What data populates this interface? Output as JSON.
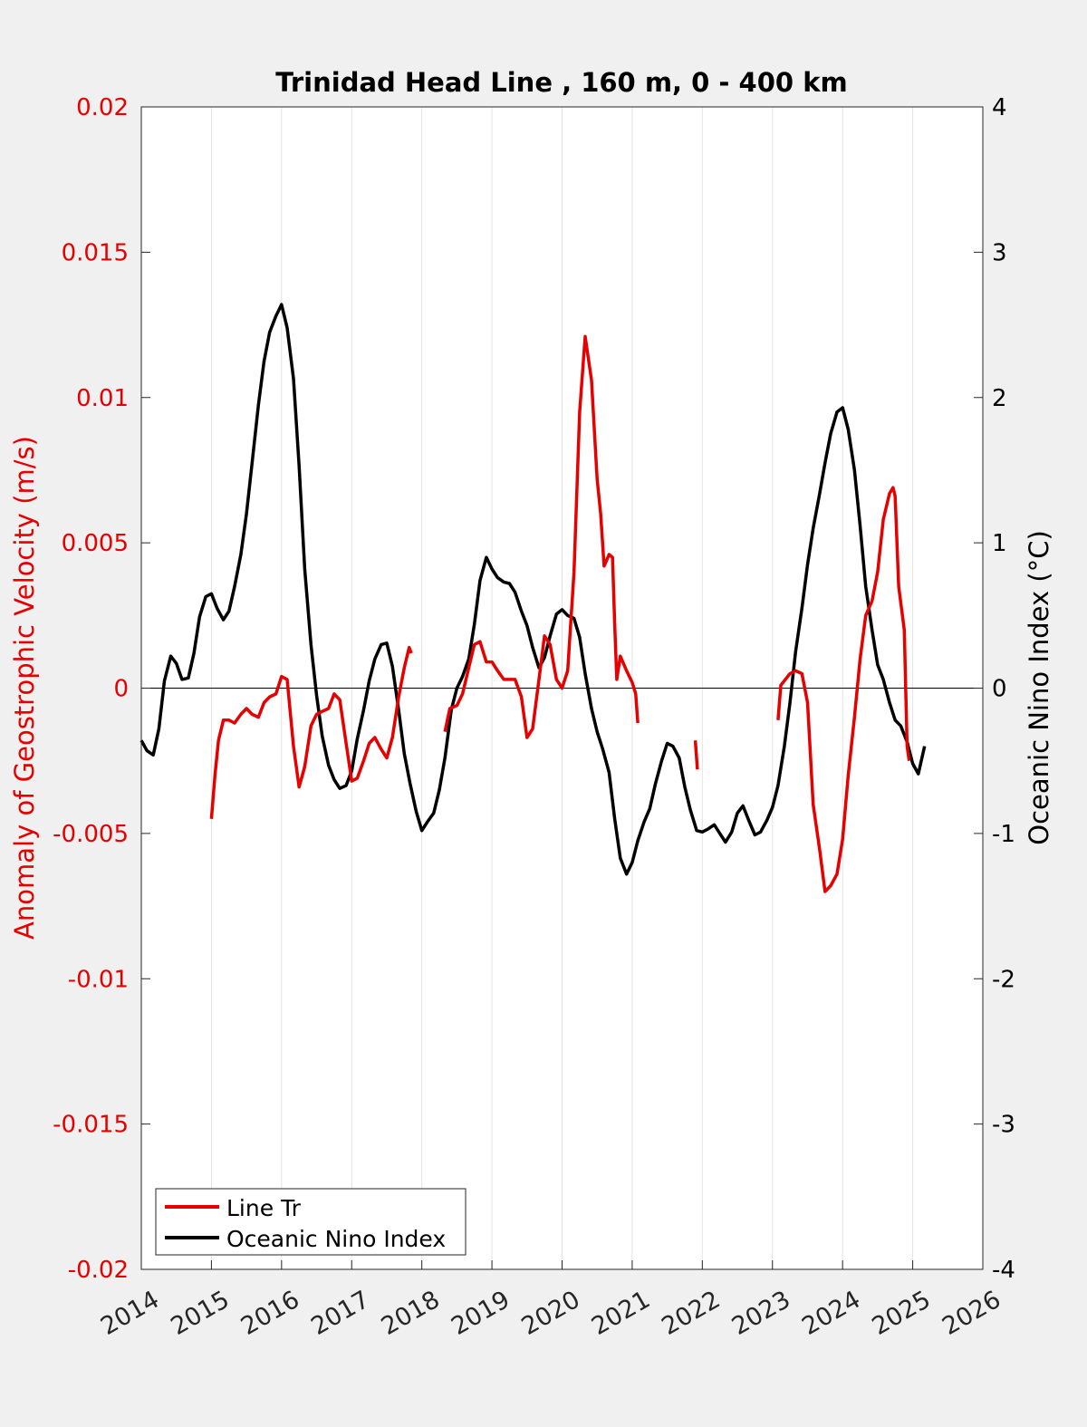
{
  "chart_data": {
    "type": "line",
    "title": "Trinidad Head Line , 160 m, 0 - 400 km",
    "xlabel": "",
    "ylabel_left": "Anomaly of Geostrophic Velocity (m/s)",
    "ylabel_right": "Oceanic Nino Index (°C)",
    "xlim": [
      2014,
      2026
    ],
    "ylim_left": [
      -0.02,
      0.02
    ],
    "ylim_right": [
      -4,
      4
    ],
    "x_ticks": [
      "2014",
      "2015",
      "2016",
      "2017",
      "2018",
      "2019",
      "2020",
      "2021",
      "2022",
      "2023",
      "2024",
      "2025",
      "2026"
    ],
    "y_left_ticks": [
      "0.02",
      "0.015",
      "0.01",
      "0.005",
      "0",
      "-0.005",
      "-0.01",
      "-0.015",
      "-0.02"
    ],
    "y_right_ticks": [
      "4",
      "3",
      "2",
      "1",
      "0",
      "-1",
      "-2",
      "-3",
      "-4"
    ],
    "vertical_grid": true,
    "zero_line": true,
    "legend_position": "bottom-left",
    "colors": {
      "line_tr": "#e60000",
      "oni": "#000000",
      "left_axis": "#e60000",
      "right_axis": "#000000"
    },
    "series": [
      {
        "name": "Line Tr",
        "axis": "left",
        "segments": [
          [
            [
              2015.0,
              -0.0045
            ],
            [
              2015.05,
              -0.003
            ],
            [
              2015.1,
              -0.0018
            ],
            [
              2015.17,
              -0.0011
            ],
            [
              2015.25,
              -0.0011
            ],
            [
              2015.33,
              -0.0012
            ],
            [
              2015.42,
              -0.0009
            ],
            [
              2015.5,
              -0.0007
            ],
            [
              2015.58,
              -0.0009
            ],
            [
              2015.67,
              -0.001
            ],
            [
              2015.75,
              -0.0005
            ],
            [
              2015.83,
              -0.0003
            ],
            [
              2015.92,
              -0.0002
            ],
            [
              2016.0,
              0.0004
            ],
            [
              2016.08,
              0.0003
            ],
            [
              2016.17,
              -0.002
            ],
            [
              2016.25,
              -0.0034
            ],
            [
              2016.33,
              -0.0027
            ],
            [
              2016.42,
              -0.0013
            ],
            [
              2016.5,
              -0.0009
            ],
            [
              2016.58,
              -0.0008
            ],
            [
              2016.67,
              -0.0007
            ],
            [
              2016.75,
              -0.0002
            ],
            [
              2016.83,
              -0.0004
            ],
            [
              2016.92,
              -0.0019
            ],
            [
              2017.0,
              -0.0032
            ],
            [
              2017.08,
              -0.0031
            ],
            [
              2017.17,
              -0.0025
            ],
            [
              2017.25,
              -0.0019
            ],
            [
              2017.33,
              -0.0017
            ],
            [
              2017.42,
              -0.0021
            ],
            [
              2017.5,
              -0.0024
            ],
            [
              2017.58,
              -0.0017
            ],
            [
              2017.67,
              -0.0003
            ],
            [
              2017.75,
              0.0007
            ],
            [
              2017.82,
              0.0014
            ],
            [
              2017.85,
              0.0012
            ]
          ],
          [
            [
              2018.33,
              -0.0015
            ],
            [
              2018.4,
              -0.0007
            ],
            [
              2018.5,
              -0.0006
            ],
            [
              2018.58,
              -0.0002
            ],
            [
              2018.67,
              0.0007
            ],
            [
              2018.75,
              0.0015
            ],
            [
              2018.83,
              0.0016
            ],
            [
              2018.92,
              0.0009
            ],
            [
              2019.0,
              0.0009
            ],
            [
              2019.08,
              0.0006
            ],
            [
              2019.17,
              0.0003
            ],
            [
              2019.25,
              0.0003
            ],
            [
              2019.33,
              0.0003
            ],
            [
              2019.42,
              -0.0003
            ],
            [
              2019.5,
              -0.0017
            ],
            [
              2019.58,
              -0.0014
            ],
            [
              2019.67,
              0.0003
            ],
            [
              2019.75,
              0.0018
            ],
            [
              2019.83,
              0.0015
            ],
            [
              2019.92,
              0.0003
            ],
            [
              2020.0,
              0.0
            ],
            [
              2020.08,
              0.0006
            ],
            [
              2020.17,
              0.004
            ],
            [
              2020.25,
              0.0095
            ],
            [
              2020.33,
              0.0121
            ],
            [
              2020.42,
              0.0106
            ],
            [
              2020.5,
              0.0072
            ],
            [
              2020.55,
              0.006
            ],
            [
              2020.6,
              0.0042
            ],
            [
              2020.67,
              0.0046
            ],
            [
              2020.72,
              0.0045
            ],
            [
              2020.75,
              0.0022
            ],
            [
              2020.78,
              0.0003
            ],
            [
              2020.83,
              0.0011
            ],
            [
              2020.92,
              0.0006
            ],
            [
              2021.0,
              0.0002
            ],
            [
              2021.05,
              -0.0002
            ],
            [
              2021.08,
              -0.0012
            ]
          ],
          [
            [
              2021.9,
              -0.0018
            ],
            [
              2021.93,
              -0.0028
            ]
          ],
          [
            [
              2023.08,
              -0.0011
            ],
            [
              2023.12,
              0.0001
            ],
            [
              2023.25,
              0.0005
            ],
            [
              2023.33,
              0.0006
            ],
            [
              2023.42,
              0.0005
            ],
            [
              2023.5,
              -0.0005
            ],
            [
              2023.58,
              -0.004
            ],
            [
              2023.67,
              -0.0055
            ],
            [
              2023.75,
              -0.007
            ],
            [
              2023.83,
              -0.0068
            ],
            [
              2023.92,
              -0.0064
            ],
            [
              2024.0,
              -0.0052
            ],
            [
              2024.08,
              -0.003
            ],
            [
              2024.17,
              -0.001
            ],
            [
              2024.25,
              0.001
            ],
            [
              2024.33,
              0.0025
            ],
            [
              2024.42,
              0.003
            ],
            [
              2024.5,
              0.004
            ],
            [
              2024.58,
              0.0058
            ],
            [
              2024.67,
              0.0067
            ],
            [
              2024.72,
              0.0069
            ],
            [
              2024.75,
              0.0066
            ],
            [
              2024.8,
              0.0035
            ],
            [
              2024.88,
              0.002
            ],
            [
              2024.92,
              -0.002
            ],
            [
              2024.95,
              -0.0025
            ]
          ]
        ]
      },
      {
        "name": "Oceanic Nino Index",
        "axis": "right",
        "segments": [
          [
            [
              2014.0,
              -0.36
            ],
            [
              2014.08,
              -0.43
            ],
            [
              2014.17,
              -0.46
            ],
            [
              2014.25,
              -0.28
            ],
            [
              2014.33,
              0.05
            ],
            [
              2014.42,
              0.22
            ],
            [
              2014.5,
              0.17
            ],
            [
              2014.58,
              0.06
            ],
            [
              2014.67,
              0.07
            ],
            [
              2014.75,
              0.24
            ],
            [
              2014.83,
              0.49
            ],
            [
              2014.92,
              0.63
            ],
            [
              2015.0,
              0.65
            ],
            [
              2015.08,
              0.55
            ],
            [
              2015.17,
              0.47
            ],
            [
              2015.25,
              0.53
            ],
            [
              2015.33,
              0.7
            ],
            [
              2015.42,
              0.92
            ],
            [
              2015.5,
              1.2
            ],
            [
              2015.58,
              1.55
            ],
            [
              2015.67,
              1.95
            ],
            [
              2015.75,
              2.25
            ],
            [
              2015.83,
              2.45
            ],
            [
              2015.92,
              2.56
            ],
            [
              2016.0,
              2.64
            ],
            [
              2016.08,
              2.48
            ],
            [
              2016.17,
              2.13
            ],
            [
              2016.25,
              1.53
            ],
            [
              2016.33,
              0.82
            ],
            [
              2016.42,
              0.3
            ],
            [
              2016.5,
              -0.05
            ],
            [
              2016.58,
              -0.33
            ],
            [
              2016.67,
              -0.53
            ],
            [
              2016.75,
              -0.63
            ],
            [
              2016.83,
              -0.69
            ],
            [
              2016.92,
              -0.67
            ],
            [
              2017.0,
              -0.57
            ],
            [
              2017.08,
              -0.35
            ],
            [
              2017.17,
              -0.15
            ],
            [
              2017.25,
              0.05
            ],
            [
              2017.33,
              0.2
            ],
            [
              2017.42,
              0.3
            ],
            [
              2017.5,
              0.31
            ],
            [
              2017.58,
              0.15
            ],
            [
              2017.67,
              -0.15
            ],
            [
              2017.75,
              -0.45
            ],
            [
              2017.83,
              -0.65
            ],
            [
              2017.92,
              -0.85
            ],
            [
              2018.0,
              -0.98
            ],
            [
              2018.08,
              -0.92
            ],
            [
              2018.17,
              -0.86
            ],
            [
              2018.25,
              -0.7
            ],
            [
              2018.33,
              -0.48
            ],
            [
              2018.42,
              -0.15
            ],
            [
              2018.5,
              0.0
            ],
            [
              2018.58,
              0.08
            ],
            [
              2018.67,
              0.2
            ],
            [
              2018.75,
              0.44
            ],
            [
              2018.83,
              0.74
            ],
            [
              2018.92,
              0.9
            ],
            [
              2019.0,
              0.82
            ],
            [
              2019.08,
              0.76
            ],
            [
              2019.17,
              0.73
            ],
            [
              2019.25,
              0.72
            ],
            [
              2019.33,
              0.66
            ],
            [
              2019.42,
              0.53
            ],
            [
              2019.5,
              0.43
            ],
            [
              2019.58,
              0.28
            ],
            [
              2019.67,
              0.14
            ],
            [
              2019.75,
              0.21
            ],
            [
              2019.83,
              0.36
            ],
            [
              2019.92,
              0.51
            ],
            [
              2020.0,
              0.54
            ],
            [
              2020.08,
              0.5
            ],
            [
              2020.17,
              0.48
            ],
            [
              2020.25,
              0.35
            ],
            [
              2020.33,
              0.1
            ],
            [
              2020.42,
              -0.14
            ],
            [
              2020.5,
              -0.3
            ],
            [
              2020.58,
              -0.42
            ],
            [
              2020.67,
              -0.58
            ],
            [
              2020.75,
              -0.9
            ],
            [
              2020.83,
              -1.17
            ],
            [
              2020.92,
              -1.28
            ],
            [
              2021.0,
              -1.2
            ],
            [
              2021.08,
              -1.05
            ],
            [
              2021.17,
              -0.92
            ],
            [
              2021.25,
              -0.83
            ],
            [
              2021.33,
              -0.66
            ],
            [
              2021.42,
              -0.5
            ],
            [
              2021.5,
              -0.38
            ],
            [
              2021.58,
              -0.4
            ],
            [
              2021.67,
              -0.48
            ],
            [
              2021.75,
              -0.68
            ],
            [
              2021.83,
              -0.84
            ],
            [
              2021.92,
              -0.98
            ],
            [
              2022.0,
              -0.99
            ],
            [
              2022.08,
              -0.97
            ],
            [
              2022.17,
              -0.94
            ],
            [
              2022.25,
              -1.0
            ],
            [
              2022.33,
              -1.06
            ],
            [
              2022.42,
              -0.99
            ],
            [
              2022.5,
              -0.86
            ],
            [
              2022.58,
              -0.81
            ],
            [
              2022.67,
              -0.92
            ],
            [
              2022.75,
              -1.01
            ],
            [
              2022.83,
              -0.99
            ],
            [
              2022.92,
              -0.91
            ],
            [
              2023.0,
              -0.82
            ],
            [
              2023.08,
              -0.67
            ],
            [
              2023.17,
              -0.4
            ],
            [
              2023.25,
              -0.1
            ],
            [
              2023.33,
              0.25
            ],
            [
              2023.42,
              0.55
            ],
            [
              2023.5,
              0.85
            ],
            [
              2023.58,
              1.1
            ],
            [
              2023.67,
              1.33
            ],
            [
              2023.75,
              1.55
            ],
            [
              2023.83,
              1.75
            ],
            [
              2023.92,
              1.9
            ],
            [
              2024.0,
              1.93
            ],
            [
              2024.08,
              1.78
            ],
            [
              2024.17,
              1.5
            ],
            [
              2024.25,
              1.12
            ],
            [
              2024.33,
              0.7
            ],
            [
              2024.42,
              0.4
            ],
            [
              2024.5,
              0.16
            ],
            [
              2024.58,
              0.06
            ],
            [
              2024.67,
              -0.1
            ],
            [
              2024.75,
              -0.22
            ],
            [
              2024.83,
              -0.26
            ],
            [
              2024.92,
              -0.37
            ],
            [
              2025.0,
              -0.52
            ],
            [
              2025.08,
              -0.59
            ],
            [
              2025.17,
              -0.4
            ]
          ]
        ]
      }
    ]
  },
  "legend": {
    "entries": [
      "Line Tr",
      "Oceanic Nino Index"
    ]
  }
}
